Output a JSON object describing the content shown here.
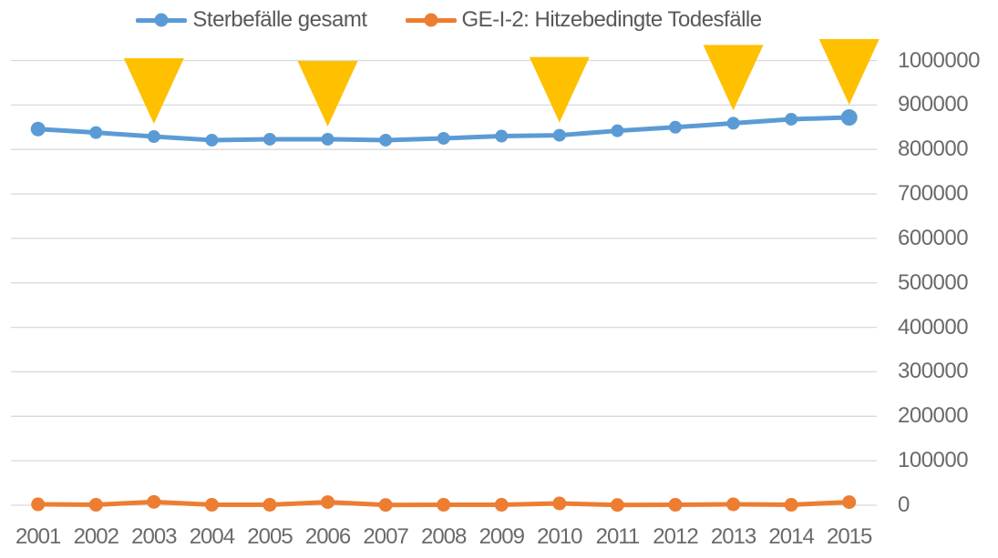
{
  "legend": {
    "series1_label": "Sterbefälle gesamt",
    "series2_label": "GE-I-2: Hitzebedingte Todesfälle"
  },
  "colors": {
    "series1": "#5B9BD5",
    "series2": "#ED7D31",
    "heatwave_marker": "#FFC000",
    "gridline": "#D9D9D9",
    "axis_text": "#6a6a6a",
    "legend_text": "#595959"
  },
  "chart_data": {
    "type": "line",
    "title": "",
    "xlabel": "",
    "ylabel": "",
    "categories": [
      "2001",
      "2002",
      "2003",
      "2004",
      "2005",
      "2006",
      "2007",
      "2008",
      "2009",
      "2010",
      "2011",
      "2012",
      "2013",
      "2014",
      "2015"
    ],
    "series": [
      {
        "name": "Sterbefälle gesamt",
        "color": "#5B9BD5",
        "values": [
          846000,
          838000,
          829000,
          821000,
          823000,
          823000,
          821000,
          825000,
          830000,
          832000,
          842000,
          850000,
          859000,
          868000,
          872000
        ]
      },
      {
        "name": "GE-I-2: Hitzebedingte Todesfälle",
        "color": "#ED7D31",
        "values": [
          2000,
          1000,
          7500,
          1000,
          1000,
          7000,
          500,
          1000,
          1000,
          4000,
          500,
          1000,
          2000,
          1000,
          7000
        ]
      }
    ],
    "annotations": {
      "shape": "triangle-down",
      "color": "#FFC000",
      "years": [
        "2003",
        "2006",
        "2010",
        "2013",
        "2015"
      ]
    },
    "ylim": [
      0,
      1000000
    ],
    "yticks": [
      0,
      100000,
      200000,
      300000,
      400000,
      500000,
      600000,
      700000,
      800000,
      900000,
      1000000
    ],
    "ytick_labels": [
      "0",
      "100000",
      "200000",
      "300000",
      "400000",
      "500000",
      "600000",
      "700000",
      "800000",
      "900000",
      "1000000"
    ],
    "grid": true,
    "legend_position": "top",
    "yaxis_side": "right"
  }
}
